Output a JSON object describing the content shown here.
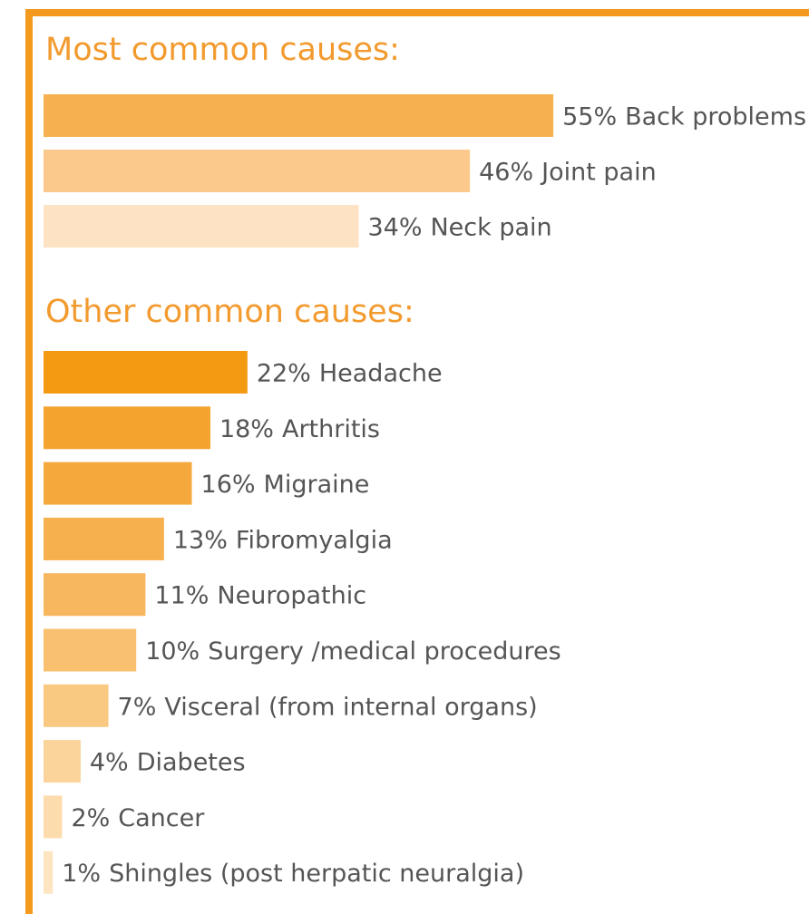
{
  "chart_data": [
    {
      "type": "bar",
      "orientation": "horizontal",
      "title": "Most common causes:",
      "categories": [
        "Back problems",
        "Joint pain",
        "Neck pain"
      ],
      "values": [
        55,
        46,
        34
      ],
      "value_labels": [
        "55%",
        "46%",
        "34%"
      ],
      "colors": [
        "#f6b04f",
        "#fac98b",
        "#fde3c4"
      ]
    },
    {
      "type": "bar",
      "orientation": "horizontal",
      "title": "Other common causes:",
      "categories": [
        "Headache",
        "Arthritis",
        "Migraine",
        "Fibromyalgia",
        "Neuropathic",
        "Surgery /medical procedures",
        "Visceral (from internal organs)",
        "Diabetes",
        "Cancer",
        "Shingles (post herpatic neuralgia)"
      ],
      "values": [
        22,
        18,
        16,
        13,
        11,
        10,
        7,
        4,
        2,
        1
      ],
      "value_labels": [
        "22%",
        "18%",
        "16%",
        "13%",
        "11%",
        "10%",
        "7%",
        "4%",
        "2%",
        "1%"
      ],
      "colors": [
        "#f39a12",
        "#f4a42e",
        "#f5a93c",
        "#f6b04e",
        "#f7b75e",
        "#f8c06f",
        "#f9c982",
        "#fbd49b",
        "#fcdcad",
        "#fde5c2"
      ]
    }
  ]
}
